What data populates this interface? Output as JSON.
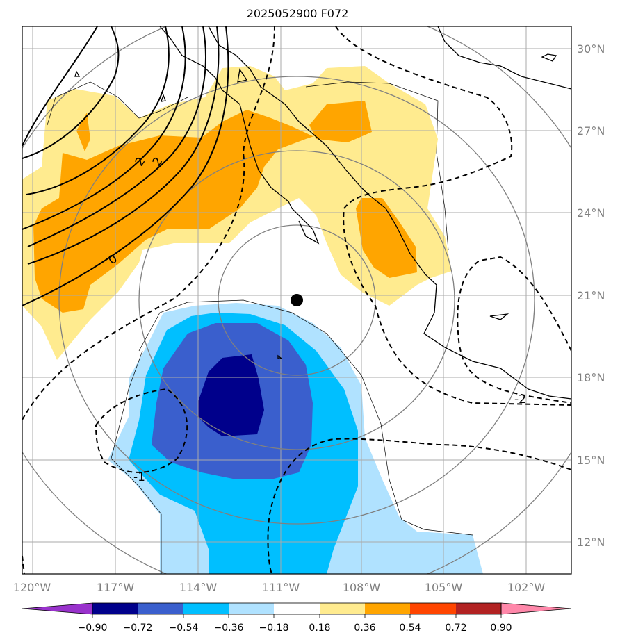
{
  "title": "2025052900 F072",
  "map": {
    "lat_labels": [
      "30°N",
      "27°N",
      "24°N",
      "21°N",
      "18°N",
      "15°N",
      "12°N"
    ],
    "lon_labels": [
      "120°W",
      "117°W",
      "114°W",
      "111°W",
      "108°W",
      "105°W",
      "102°W"
    ],
    "contour_labels": [
      {
        "text": "2"
      },
      {
        "text": "2"
      },
      {
        "text": "0"
      },
      {
        "text": "-1"
      },
      {
        "text": "-2"
      }
    ],
    "marker": "storm-center-dot",
    "colors": {
      "grid": "#aaaaaa",
      "lat_lon_labels": "#808080"
    }
  },
  "colorbar": {
    "ticks": [
      "−0.90",
      "−0.72",
      "−0.54",
      "−0.36",
      "−0.18",
      "0.18",
      "0.36",
      "0.54",
      "0.72",
      "0.90"
    ],
    "colors": [
      "#9932cc",
      "#00008b",
      "#3a5fcd",
      "#00bfff",
      "#b0e2ff",
      "#ffffff",
      "#ffeb8f",
      "#ffa500",
      "#ff4500",
      "#b22222",
      "#ff88aa"
    ]
  }
}
